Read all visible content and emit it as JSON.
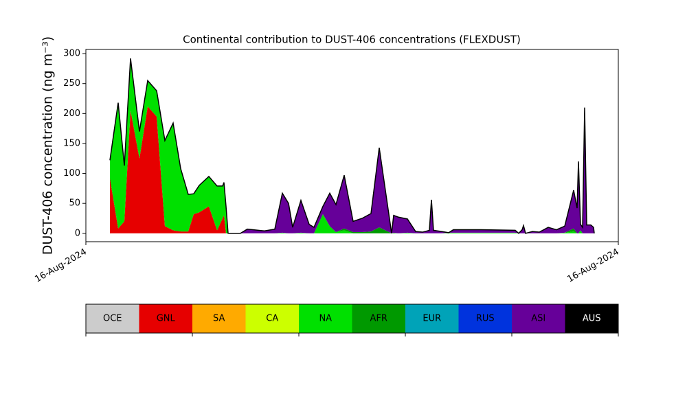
{
  "chart_data": {
    "type": "stacked_area",
    "title": "Continental contribution to DUST-406 concentrations (FLEXDUST)",
    "y_label": "DUST-406 concentration (ng m⁻³)",
    "x": [
      35,
      47,
      56,
      65,
      78,
      90,
      103,
      115,
      127,
      138,
      149,
      157,
      165,
      179,
      191,
      199,
      201,
      204,
      207,
      225,
      235,
      260,
      275,
      286,
      295,
      301,
      313,
      325,
      332,
      345,
      355,
      364,
      376,
      389,
      402,
      415,
      427,
      445,
      448,
      455,
      468,
      480,
      490,
      500,
      503,
      506,
      518,
      528,
      535,
      575,
      625,
      630,
      635,
      637,
      640,
      650,
      660,
      673,
      685,
      697,
      710,
      715,
      717,
      720,
      723,
      726,
      729,
      735,
      739,
      740
    ],
    "xlim": [
      0,
      775
    ],
    "xticks": [
      {
        "value": 0,
        "label": "16-Aug-2024"
      },
      {
        "value": 775,
        "label": "16-Aug-2024"
      }
    ],
    "ylim": [
      -14,
      307
    ],
    "yticks": [
      0,
      50,
      100,
      150,
      200,
      250,
      300
    ],
    "series": [
      {
        "name": "GNL",
        "color": "#e60000",
        "values": [
          92,
          8,
          20,
          205,
          125,
          212,
          195,
          12,
          5,
          3,
          3,
          32,
          35,
          45,
          5,
          25,
          30,
          0,
          0,
          0,
          0,
          0,
          0,
          0,
          0,
          0,
          0,
          0,
          0,
          0,
          0,
          0,
          0,
          0,
          0,
          0,
          0,
          0,
          0,
          0,
          0,
          0,
          0,
          0,
          0,
          0,
          0,
          0,
          0,
          0,
          0,
          0,
          0,
          0,
          0,
          0,
          0,
          0,
          0,
          0,
          0,
          0,
          0,
          0,
          0,
          0,
          0,
          0,
          0,
          0
        ]
      },
      {
        "name": "NA",
        "color": "#00e000",
        "values": [
          30,
          210,
          93,
          87,
          45,
          43,
          43,
          143,
          179,
          105,
          62,
          34,
          45,
          50,
          74,
          54,
          55,
          45,
          0,
          0,
          0,
          0,
          0,
          1,
          0,
          0,
          1,
          0,
          0,
          32,
          12,
          2,
          5,
          0,
          0,
          0,
          0,
          0,
          0,
          0,
          1,
          0,
          0,
          0,
          0,
          0,
          0,
          1,
          1,
          1,
          1,
          0,
          0,
          0,
          0,
          0,
          0,
          0,
          0,
          1,
          3,
          0,
          0,
          5,
          0,
          0,
          0,
          0,
          0,
          0
        ]
      },
      {
        "name": "AFR",
        "color": "#009900",
        "values": [
          0,
          0,
          0,
          0,
          0,
          0,
          0,
          0,
          0,
          0,
          0,
          0,
          0,
          0,
          0,
          0,
          0,
          0,
          0,
          0,
          0,
          0,
          0,
          0,
          0,
          0,
          0,
          0,
          0,
          0,
          0,
          0,
          3,
          2,
          2,
          3,
          10,
          0,
          1,
          0,
          0,
          0,
          0,
          0,
          0,
          0,
          0,
          0,
          0,
          0,
          0,
          0,
          0,
          0,
          0,
          0,
          0,
          0,
          0,
          0,
          5,
          0,
          0,
          0,
          0,
          0,
          0,
          0,
          0,
          0
        ]
      },
      {
        "name": "ASI",
        "color": "#660099",
        "values": [
          0,
          0,
          0,
          0,
          0,
          0,
          0,
          0,
          0,
          0,
          0,
          0,
          0,
          0,
          0,
          0,
          0,
          0,
          0,
          0,
          7,
          4,
          7,
          66,
          50,
          10,
          54,
          15,
          10,
          13,
          55,
          46,
          89,
          18,
          23,
          30,
          133,
          0,
          29,
          27,
          23,
          3,
          2,
          5,
          56,
          5,
          3,
          0,
          5,
          5,
          4,
          0,
          6,
          13,
          0,
          3,
          2,
          10,
          6,
          11,
          64,
          42,
          120,
          10,
          10,
          210,
          14,
          14,
          10,
          0
        ]
      }
    ],
    "colorbar": [
      {
        "name": "OCE",
        "color": "#cccccc"
      },
      {
        "name": "GNL",
        "color": "#e60000"
      },
      {
        "name": "SA",
        "color": "#ffaa00"
      },
      {
        "name": "CA",
        "color": "#ccff00"
      },
      {
        "name": "NA",
        "color": "#00e000"
      },
      {
        "name": "AFR",
        "color": "#009900"
      },
      {
        "name": "EUR",
        "color": "#00a3b8"
      },
      {
        "name": "RUS",
        "color": "#0033dd"
      },
      {
        "name": "ASI",
        "color": "#660099"
      },
      {
        "name": "AUS",
        "color": "#000000"
      }
    ]
  }
}
